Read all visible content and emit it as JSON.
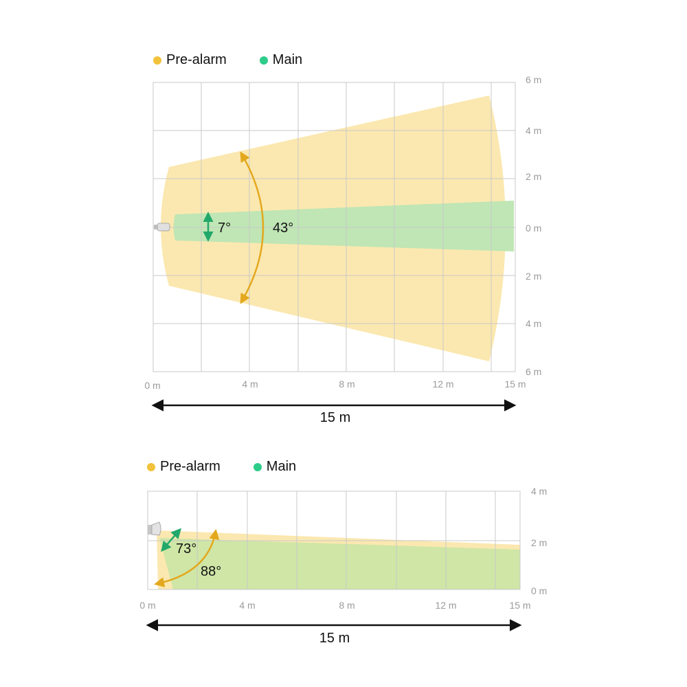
{
  "colors": {
    "pre_alarm": "#f2c23a",
    "main": "#2ecc8a",
    "pre_alarm_fill": "#fbe8b0",
    "main_fill": "#bfe6b4",
    "angle_pre_alarm": "#e3a81e",
    "angle_main": "#22a86a",
    "grid": "#c8c8c8"
  },
  "top_view": {
    "legend": {
      "pre_alarm": "Pre-alarm",
      "main": "Main"
    },
    "x_ticks": [
      "0 m",
      "4 m",
      "8 m",
      "12 m",
      "15 m"
    ],
    "y_ticks": [
      "6 m",
      "4 m",
      "2 m",
      "0 m",
      "2 m",
      "4 m",
      "6 m"
    ],
    "main_angle": "7°",
    "pre_alarm_angle": "43°",
    "distance_label": "15 m"
  },
  "side_view": {
    "legend": {
      "pre_alarm": "Pre-alarm",
      "main": "Main"
    },
    "x_ticks": [
      "0 m",
      "4 m",
      "8 m",
      "12 m",
      "15 m"
    ],
    "y_ticks": [
      "4 m",
      "2 m",
      "0 m"
    ],
    "main_angle": "73°",
    "pre_alarm_angle": "88°",
    "distance_label": "15 m"
  }
}
